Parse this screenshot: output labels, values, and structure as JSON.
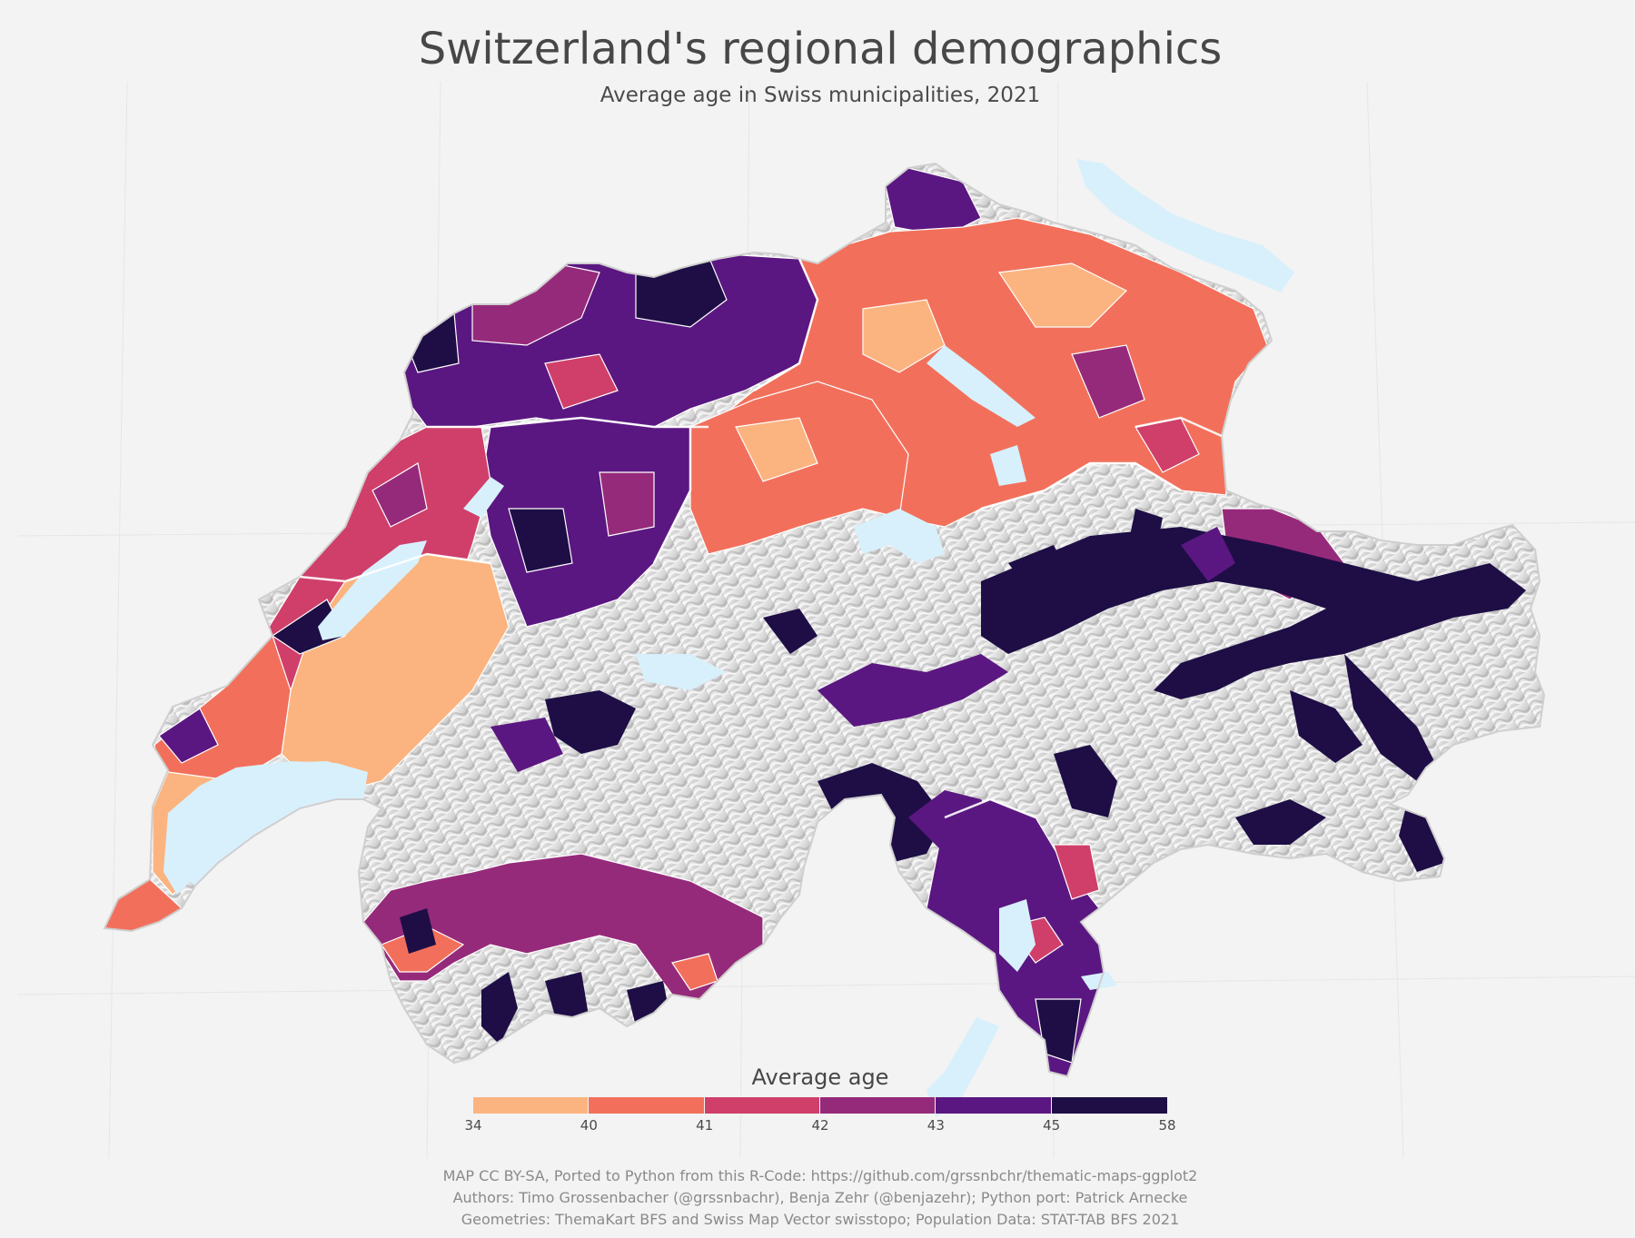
{
  "title": "Switzerland's regional demographics",
  "subtitle": "Average age in Swiss municipalities, 2021",
  "map": {
    "region": "Switzerland",
    "variable": "Average age",
    "unit": "years",
    "terrain_relief": "hillshade",
    "lakes_color": "#d8f0fb"
  },
  "legend": {
    "title": "Average age",
    "breaks": [
      "34",
      "40",
      "41",
      "42",
      "43",
      "45",
      "58"
    ],
    "colors": [
      "#fbb47f",
      "#f2705b",
      "#cf3f6a",
      "#962a7a",
      "#5b1781",
      "#1e0e45"
    ]
  },
  "credits": [
    "MAP CC BY-SA, Ported to Python from this R-Code: https://github.com/grssnbchr/thematic-maps-ggplot2",
    "Authors: Timo Grossenbacher (@grssnbachr), Benja Zehr (@benjazehr); Python port: Patrick Arnecke",
    "Geometries: ThemaKart BFS and Swiss Map Vector swisstopo; Population Data: STAT-TAB BFS 2021"
  ]
}
